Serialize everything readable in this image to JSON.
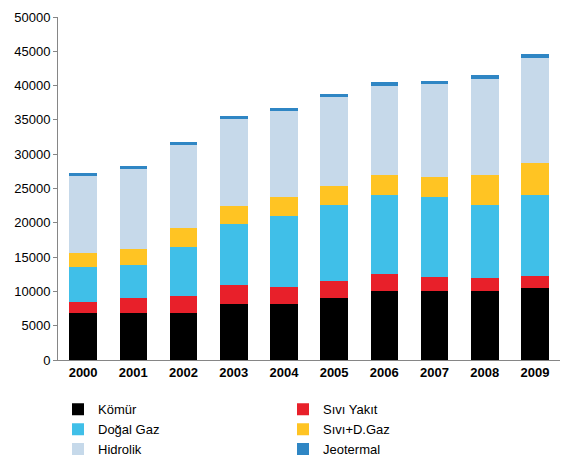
{
  "chart_data": {
    "type": "bar",
    "stacked": true,
    "grid": false,
    "legend": "bottom",
    "categories": [
      "2000",
      "2001",
      "2002",
      "2003",
      "2004",
      "2005",
      "2006",
      "2007",
      "2008",
      "2009"
    ],
    "ylim": [
      0,
      50000
    ],
    "yticks": [
      0,
      5000,
      10000,
      15000,
      20000,
      25000,
      30000,
      35000,
      40000,
      45000,
      50000
    ],
    "series": [
      {
        "name": "Kömür",
        "color": "#000000",
        "values": [
          6900,
          6900,
          6900,
          8200,
          8200,
          9000,
          10000,
          10000,
          10000,
          10500
        ]
      },
      {
        "name": "Sıvı Yakıt",
        "color": "#e8202a",
        "values": [
          1600,
          2100,
          2400,
          2700,
          2500,
          2500,
          2500,
          2100,
          1900,
          1800
        ]
      },
      {
        "name": "Doğal Gaz",
        "color": "#40bfe8",
        "values": [
          5000,
          4800,
          7200,
          8900,
          10300,
          11100,
          11600,
          11700,
          10700,
          11800
        ]
      },
      {
        "name": "Sıvı+D.Gaz",
        "color": "#ffc423",
        "values": [
          2100,
          2400,
          2700,
          2600,
          2700,
          2800,
          2800,
          2900,
          4400,
          4600
        ]
      },
      {
        "name": "Hidrolik",
        "color": "#c6d9ea",
        "values": [
          11200,
          11600,
          12200,
          12700,
          12600,
          12900,
          13100,
          13500,
          14000,
          15300
        ]
      },
      {
        "name": "Jeotermal",
        "color": "#2f86c4",
        "values": [
          450,
          500,
          450,
          500,
          500,
          500,
          500,
          500,
          600,
          600
        ]
      }
    ]
  }
}
